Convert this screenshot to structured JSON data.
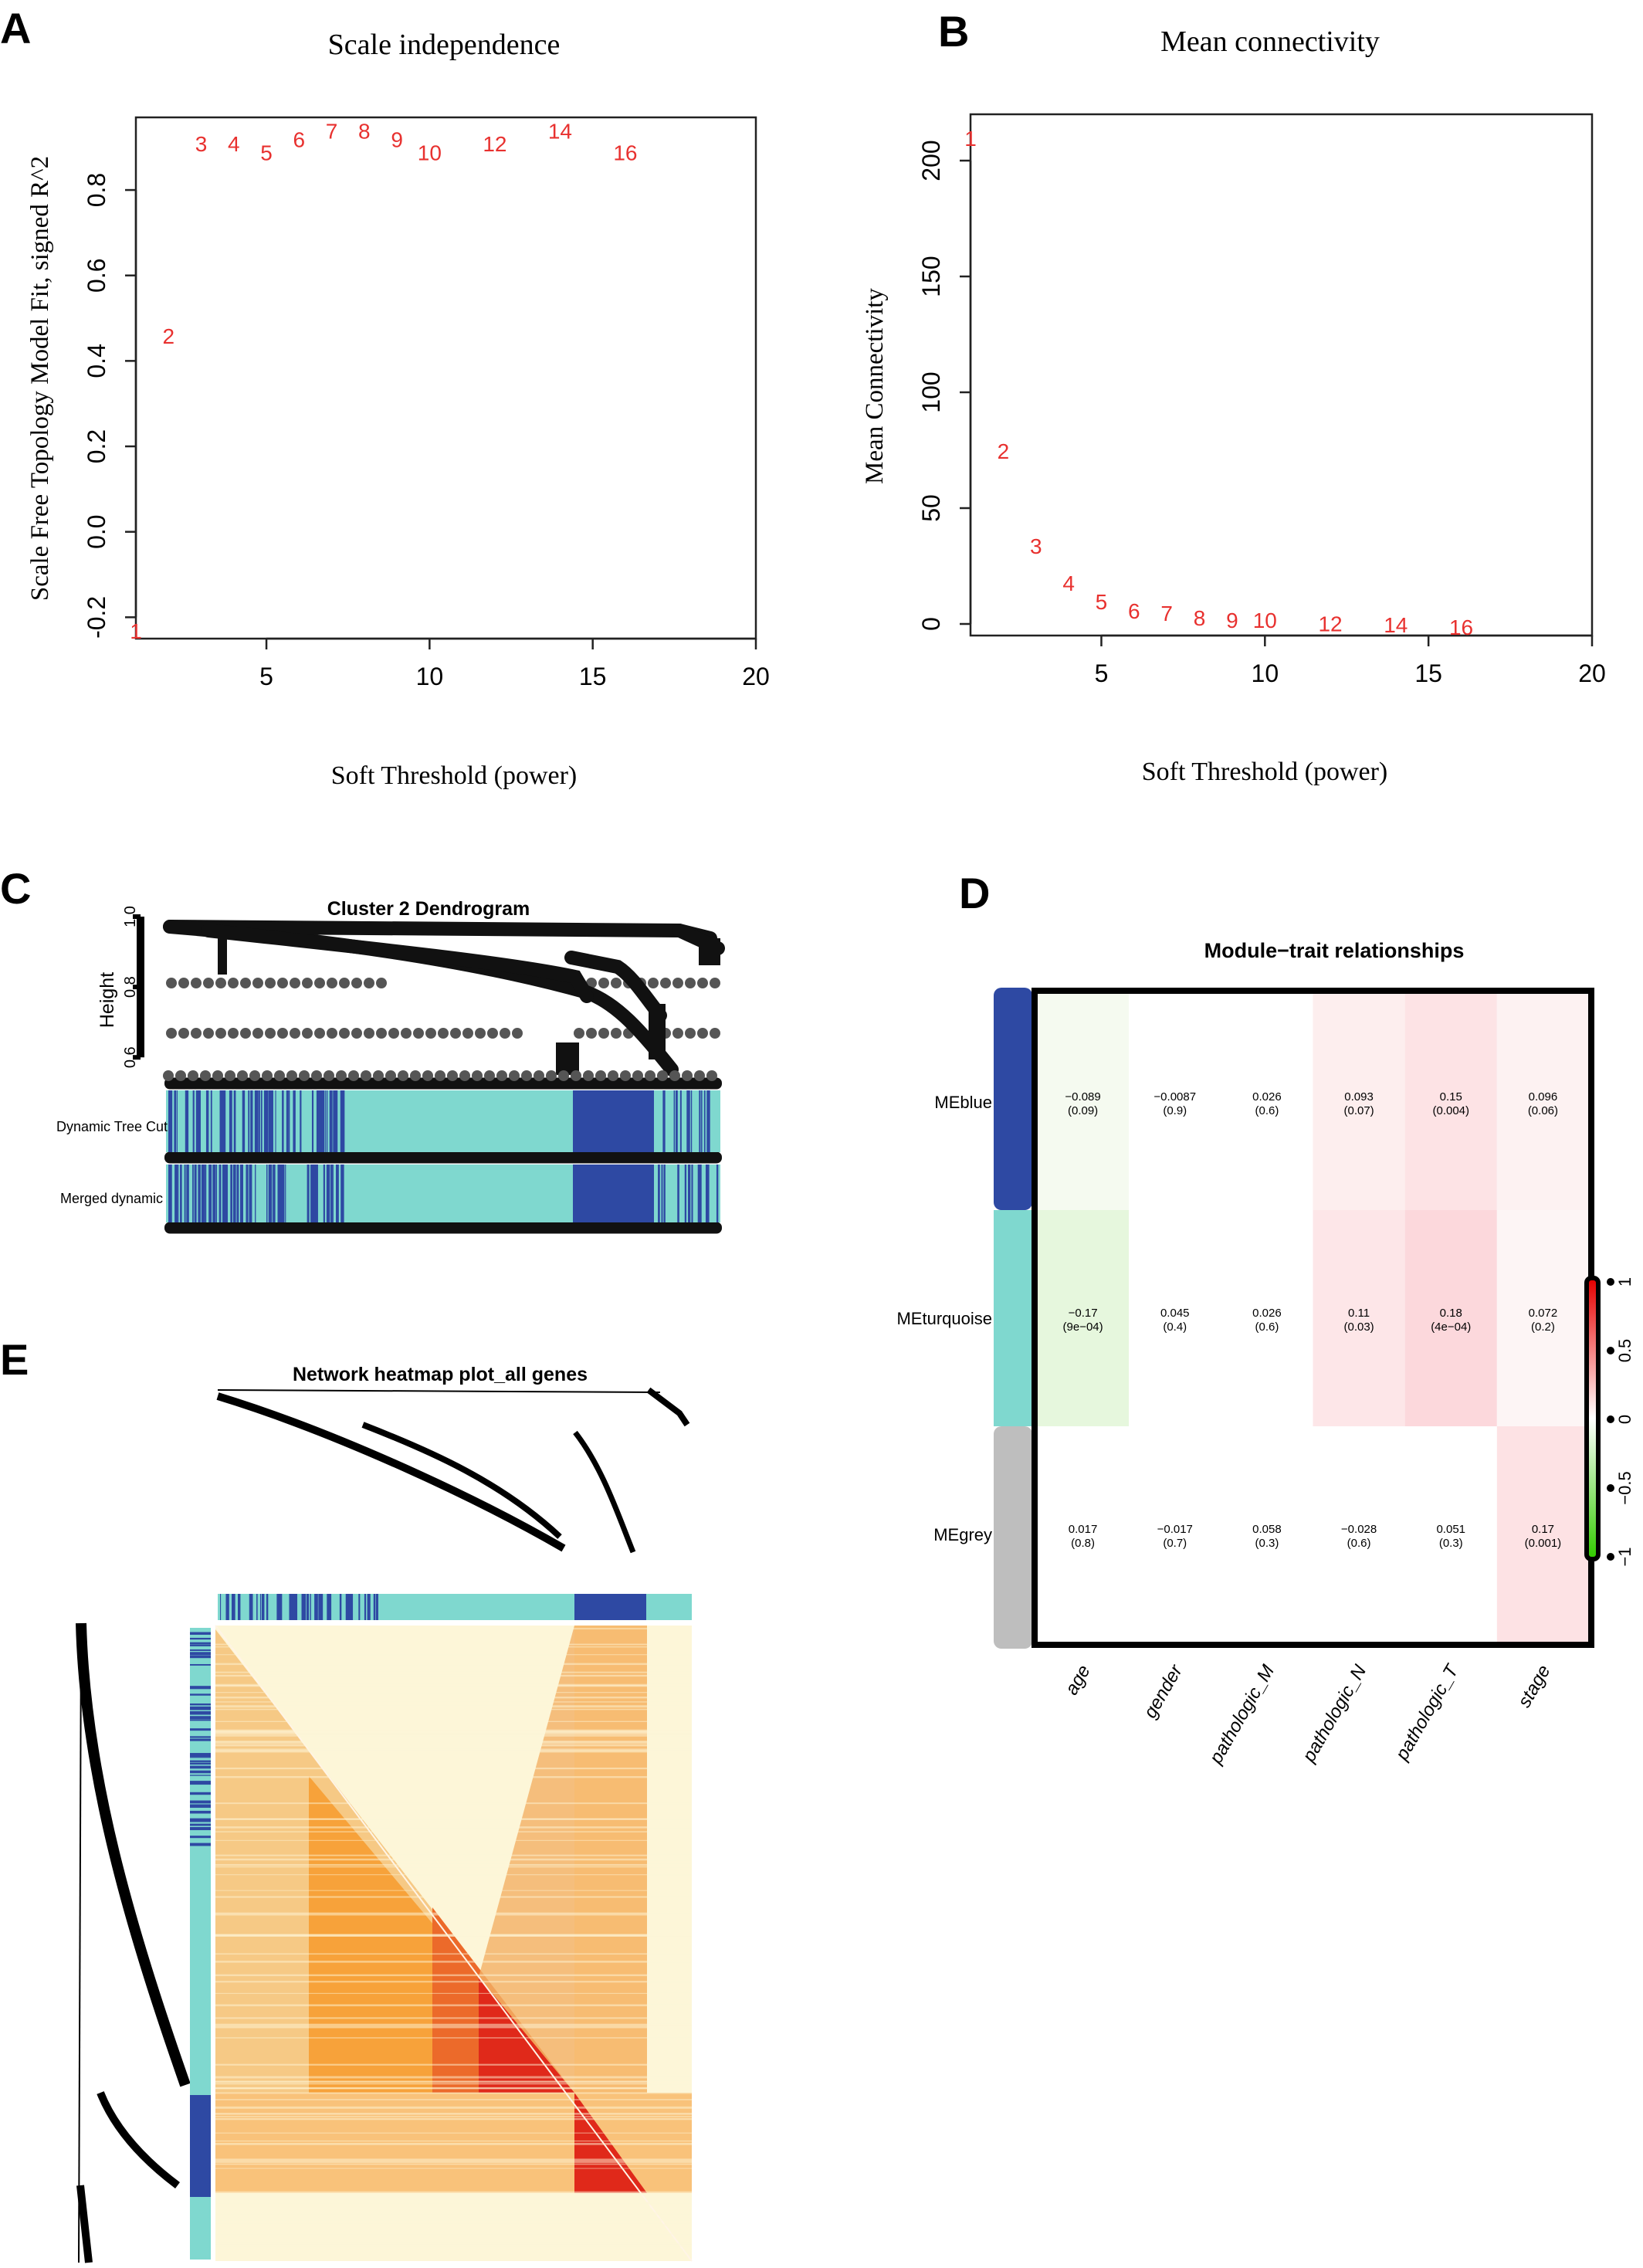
{
  "panels": {
    "a": {
      "letter": "A"
    },
    "b": {
      "letter": "B"
    },
    "c": {
      "letter": "C"
    },
    "d": {
      "letter": "D"
    },
    "e": {
      "letter": "E"
    }
  },
  "chart_data": [
    {
      "id": "scale-independence",
      "type": "scatter",
      "title": "Scale independence",
      "xlabel": "Soft Threshold (power)",
      "ylabel": "Scale Free Topology Model Fit, signed R^2",
      "xlim": [
        1,
        20
      ],
      "ylim": [
        -0.25,
        0.97
      ],
      "xticks": [
        "5",
        "10",
        "15",
        "20"
      ],
      "yticks": [
        "-0.2",
        "0.0",
        "0.2",
        "0.4",
        "0.6",
        "0.8"
      ],
      "point_color": "#e8312f",
      "x": [
        1,
        2,
        3,
        4,
        5,
        6,
        7,
        8,
        9,
        10,
        12,
        14,
        16
      ],
      "y": [
        -0.23,
        0.46,
        0.91,
        0.91,
        0.89,
        0.92,
        0.94,
        0.94,
        0.92,
        0.89,
        0.91,
        0.94,
        0.89
      ],
      "labels": [
        "1",
        "2",
        "3",
        "4",
        "5",
        "6",
        "7",
        "8",
        "9",
        "10",
        "12",
        "14",
        "16"
      ]
    },
    {
      "id": "mean-connectivity",
      "type": "scatter",
      "title": "Mean connectivity",
      "xlabel": "Soft Threshold (power)",
      "ylabel": "Mean Connectivity",
      "xlim": [
        1,
        20
      ],
      "ylim": [
        -5,
        220
      ],
      "xticks": [
        "5",
        "10",
        "15",
        "20"
      ],
      "yticks": [
        "0",
        "50",
        "100",
        "150",
        "200"
      ],
      "point_color": "#e8312f",
      "x": [
        1,
        2,
        3,
        4,
        5,
        6,
        7,
        8,
        9,
        10,
        12,
        14,
        16
      ],
      "y": [
        210,
        75,
        34,
        18,
        10,
        6,
        5,
        3,
        2,
        2,
        0.5,
        0,
        -1
      ],
      "labels": [
        "1",
        "2",
        "3",
        "4",
        "5",
        "6",
        "7",
        "8",
        "9",
        "10",
        "12",
        "14",
        "16"
      ]
    },
    {
      "id": "cluster-dendrogram",
      "type": "dendrogram",
      "title": "Cluster 2 Dendrogram",
      "ylabel": "Height",
      "ylim": [
        0.55,
        1.0
      ],
      "yticks": [
        "0.6",
        "0.8",
        "1.0"
      ],
      "color_rows": [
        "Dynamic Tree Cut",
        "Merged dynamic"
      ],
      "colors": {
        "turquoise": "#7fd8cf",
        "blue": "#2e49a3",
        "dark": "#111111",
        "point_grey": "#555555"
      }
    },
    {
      "id": "module-trait",
      "type": "heatmap",
      "title": "Module−trait relationships",
      "rows": [
        "MEblue",
        "MEturquoise",
        "MEgrey"
      ],
      "row_colors": [
        "#2e49a3",
        "#7fd8cf",
        "#bebebe"
      ],
      "columns": [
        "age",
        "gender",
        "pathologic_M",
        "pathologic_N",
        "pathologic_T",
        "stage"
      ],
      "values": [
        [
          -0.089,
          -0.0087,
          0.026,
          0.093,
          0.15,
          0.096
        ],
        [
          -0.17,
          0.045,
          0.026,
          0.11,
          0.18,
          0.072
        ],
        [
          0.017,
          -0.017,
          0.058,
          -0.028,
          0.051,
          0.17
        ]
      ],
      "cell_text": [
        [
          [
            "−0.089",
            "(0.09)"
          ],
          [
            "−0.0087",
            "(0.9)"
          ],
          [
            "0.026",
            "(0.6)"
          ],
          [
            "0.093",
            "(0.07)"
          ],
          [
            "0.15",
            "(0.004)"
          ],
          [
            "0.096",
            "(0.06)"
          ]
        ],
        [
          [
            "−0.17",
            "(9e−04)"
          ],
          [
            "0.045",
            "(0.4)"
          ],
          [
            "0.026",
            "(0.6)"
          ],
          [
            "0.11",
            "(0.03)"
          ],
          [
            "0.18",
            "(4e−04)"
          ],
          [
            "0.072",
            "(0.2)"
          ]
        ],
        [
          [
            "0.017",
            "(0.8)"
          ],
          [
            "−0.017",
            "(0.7)"
          ],
          [
            "0.058",
            "(0.3)"
          ],
          [
            "−0.028",
            "(0.6)"
          ],
          [
            "0.051",
            "(0.3)"
          ],
          [
            "0.17",
            "(0.001)"
          ]
        ]
      ],
      "cell_colors": [
        [
          "#f5faf0",
          "#ffffff",
          "#ffffff",
          "#fdeeee",
          "#fde3e5",
          "#fdf2f2"
        ],
        [
          "#e6f7dd",
          "#ffffff",
          "#ffffff",
          "#fde6e8",
          "#fcd8dc",
          "#fdf5f5"
        ],
        [
          "#ffffff",
          "#ffffff",
          "#ffffff",
          "#ffffff",
          "#ffffff",
          "#fde2e4"
        ]
      ],
      "legend_ticks": [
        "1",
        "0.5",
        "0",
        "−0.5",
        "−1"
      ],
      "legend_range": [
        -1,
        1
      ]
    },
    {
      "id": "network-heatmap",
      "type": "heatmap",
      "title": "Network heatmap plot_all genes",
      "colors": {
        "low": "#fdf6d8",
        "mid": "#f7a23a",
        "high": "#e0291a",
        "turquoise": "#7fd8cf",
        "blue": "#2e49a3"
      }
    }
  ]
}
